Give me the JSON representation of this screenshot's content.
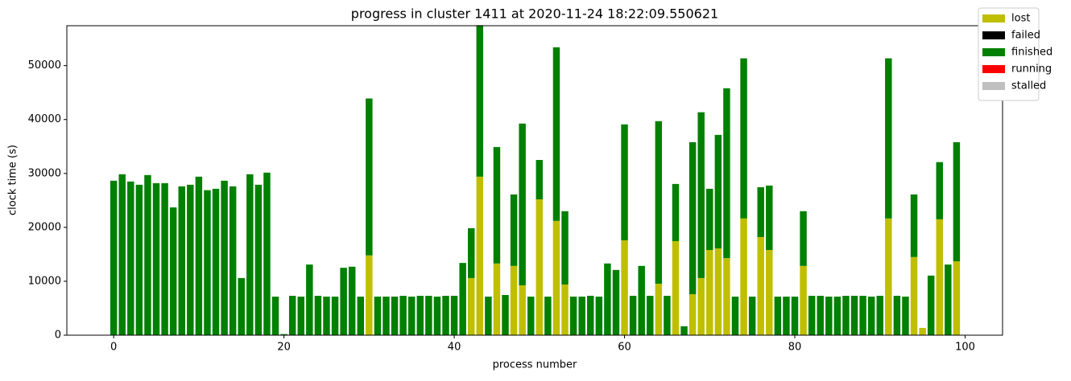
{
  "chart_data": {
    "type": "stacked_bar",
    "title": "progress in cluster 1411 at 2020-11-24 18:22:09.550621",
    "xlabel": "process number",
    "ylabel": "clock time (s)",
    "x": [
      0,
      1,
      2,
      3,
      4,
      5,
      6,
      7,
      8,
      9,
      10,
      11,
      12,
      13,
      14,
      15,
      16,
      17,
      18,
      19,
      20,
      21,
      22,
      23,
      24,
      25,
      26,
      27,
      28,
      29,
      30,
      31,
      32,
      33,
      34,
      35,
      36,
      37,
      38,
      39,
      40,
      41,
      42,
      43,
      44,
      45,
      46,
      47,
      48,
      49,
      50,
      51,
      52,
      53,
      54,
      55,
      56,
      57,
      58,
      59,
      60,
      61,
      62,
      63,
      64,
      65,
      66,
      67,
      68,
      69,
      70,
      71,
      72,
      73,
      74,
      75,
      76,
      77,
      78,
      79,
      80,
      81,
      82,
      83,
      84,
      85,
      86,
      87,
      88,
      89,
      90,
      91,
      92,
      93,
      94,
      95,
      96,
      97,
      98,
      99
    ],
    "series": [
      {
        "name": "lost",
        "color": "#bfbf00",
        "values": [
          0,
          0,
          0,
          0,
          0,
          0,
          0,
          0,
          0,
          0,
          0,
          0,
          0,
          0,
          0,
          0,
          0,
          0,
          0,
          0,
          0,
          0,
          0,
          0,
          0,
          0,
          0,
          0,
          0,
          0,
          14800,
          0,
          0,
          0,
          0,
          0,
          0,
          0,
          0,
          0,
          0,
          0,
          10600,
          29400,
          0,
          13300,
          0,
          12850,
          9250,
          0,
          25200,
          0,
          21200,
          9400,
          0,
          0,
          0,
          0,
          0,
          0,
          17600,
          0,
          0,
          0,
          9550,
          0,
          17450,
          0,
          7600,
          10600,
          15800,
          16100,
          14300,
          0,
          21650,
          0,
          18200,
          15800,
          0,
          0,
          0,
          12850,
          0,
          0,
          0,
          0,
          0,
          0,
          0,
          0,
          0,
          21650,
          0,
          0,
          14500,
          1350,
          0,
          21500,
          0,
          13700
        ]
      },
      {
        "name": "failed",
        "color": "#000000",
        "values": [
          0,
          0,
          0,
          0,
          0,
          0,
          0,
          0,
          0,
          0,
          0,
          0,
          0,
          0,
          0,
          0,
          0,
          0,
          0,
          0,
          0,
          0,
          0,
          0,
          0,
          0,
          0,
          0,
          0,
          0,
          0,
          0,
          0,
          0,
          0,
          0,
          0,
          0,
          0,
          0,
          0,
          0,
          0,
          0,
          0,
          0,
          0,
          0,
          0,
          0,
          0,
          0,
          0,
          0,
          0,
          0,
          0,
          0,
          0,
          0,
          0,
          0,
          0,
          0,
          0,
          0,
          0,
          0,
          0,
          0,
          0,
          0,
          0,
          0,
          0,
          0,
          0,
          0,
          0,
          0,
          0,
          0,
          0,
          0,
          0,
          0,
          0,
          0,
          0,
          0,
          0,
          0,
          0,
          0,
          0,
          0,
          0,
          0,
          0,
          0
        ]
      },
      {
        "name": "finished",
        "color": "#008000",
        "values": [
          28650,
          29850,
          28500,
          27900,
          29700,
          28200,
          28200,
          23700,
          27600,
          27900,
          29400,
          26900,
          27150,
          28650,
          27600,
          10600,
          29850,
          27900,
          30150,
          7150,
          200,
          7300,
          7150,
          13100,
          7300,
          7150,
          7150,
          12500,
          12700,
          7150,
          29100,
          7150,
          7150,
          7150,
          7300,
          7150,
          7300,
          7300,
          7150,
          7300,
          7300,
          13400,
          9250,
          28100,
          7150,
          21600,
          7450,
          13250,
          30000,
          7150,
          7300,
          7150,
          32200,
          13600,
          7150,
          7150,
          7300,
          7150,
          13300,
          12100,
          21500,
          7300,
          12850,
          7300,
          30150,
          7300,
          10600,
          1650,
          28200,
          30750,
          11350,
          21050,
          31500,
          7150,
          29700,
          7150,
          9250,
          11950,
          7150,
          7150,
          7150,
          10150,
          7300,
          7300,
          7150,
          7150,
          7300,
          7300,
          7300,
          7150,
          7300,
          29700,
          7300,
          7150,
          11600,
          0,
          11050,
          10600,
          13100,
          22100
        ]
      },
      {
        "name": "running",
        "color": "#ff0000",
        "values": [
          0,
          0,
          0,
          0,
          0,
          0,
          0,
          0,
          0,
          0,
          0,
          0,
          0,
          0,
          0,
          0,
          0,
          0,
          0,
          0,
          0,
          0,
          0,
          0,
          0,
          0,
          0,
          0,
          0,
          0,
          0,
          0,
          0,
          0,
          0,
          0,
          0,
          0,
          0,
          0,
          0,
          0,
          0,
          0,
          0,
          0,
          0,
          0,
          0,
          0,
          0,
          0,
          0,
          0,
          0,
          0,
          0,
          0,
          0,
          0,
          0,
          0,
          0,
          0,
          0,
          0,
          0,
          0,
          0,
          0,
          0,
          0,
          0,
          0,
          0,
          0,
          0,
          0,
          0,
          0,
          0,
          0,
          0,
          0,
          0,
          0,
          0,
          0,
          0,
          0,
          0,
          0,
          0,
          0,
          0,
          0,
          0,
          0,
          0,
          0
        ]
      },
      {
        "name": "stalled",
        "color": "#c0c0c0",
        "values": [
          0,
          0,
          0,
          0,
          0,
          0,
          0,
          0,
          0,
          0,
          0,
          0,
          0,
          0,
          0,
          0,
          0,
          0,
          0,
          0,
          0,
          0,
          0,
          0,
          0,
          0,
          0,
          0,
          0,
          0,
          0,
          0,
          0,
          0,
          0,
          0,
          0,
          0,
          0,
          0,
          0,
          0,
          0,
          0,
          0,
          0,
          0,
          0,
          0,
          0,
          0,
          0,
          0,
          0,
          0,
          0,
          0,
          0,
          0,
          0,
          0,
          0,
          0,
          0,
          0,
          0,
          0,
          0,
          0,
          0,
          0,
          0,
          0,
          0,
          0,
          0,
          0,
          0,
          0,
          0,
          0,
          0,
          0,
          0,
          0,
          0,
          0,
          0,
          0,
          0,
          0,
          0,
          0,
          0,
          0,
          0,
          0,
          0,
          0,
          0
        ]
      }
    ],
    "xlim": [
      -5.5,
      104.4
    ],
    "xticks": [
      0,
      20,
      40,
      60,
      80,
      100
    ],
    "ylim": [
      0,
      57400
    ],
    "yticks": [
      0,
      10000,
      20000,
      30000,
      40000,
      50000
    ],
    "legend": "upper right"
  }
}
